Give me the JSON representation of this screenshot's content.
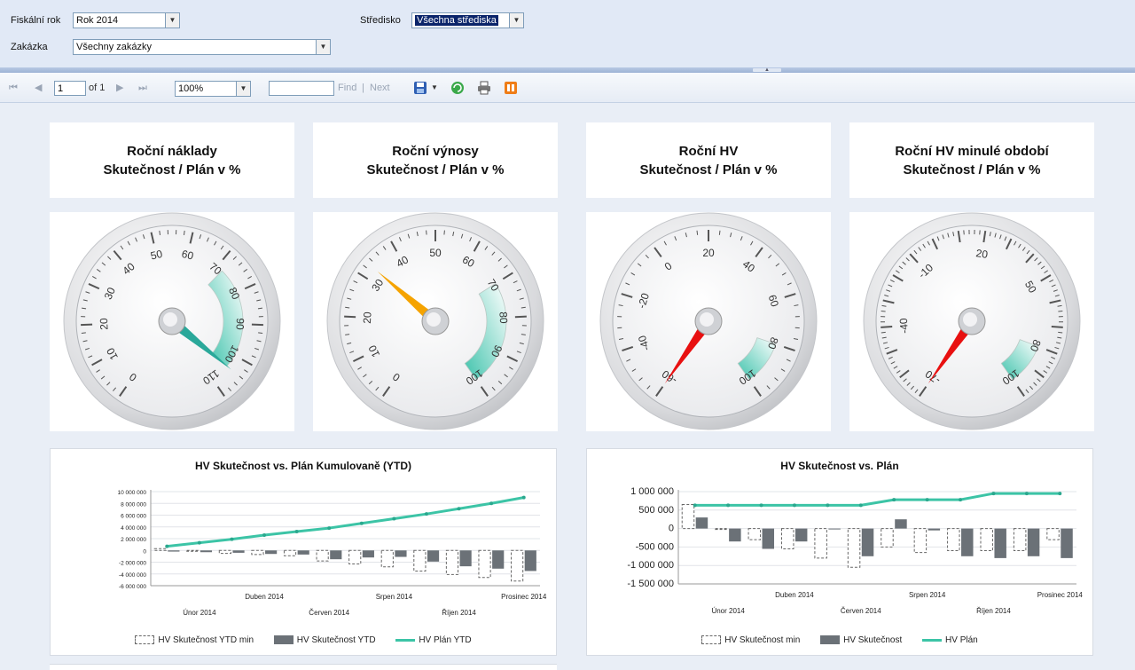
{
  "params": {
    "fiscal_year_label": "Fiskální rok",
    "fiscal_year_value": "Rok 2014",
    "center_label": "Středisko",
    "center_value": "Všechna střediska",
    "order_label": "Zakázka",
    "order_value": "Všechny zakázky"
  },
  "toolbar": {
    "page_value": "1",
    "page_of": "of 1",
    "zoom_value": "100%",
    "find_label": "Find",
    "separator": "|",
    "next_label": "Next"
  },
  "kpis": [
    {
      "title_line1": "Roční náklady",
      "title_line2": "Skutečnost / Plán v %",
      "min": 0,
      "max": 110,
      "major_step": 10,
      "value": 104,
      "labels": [
        0,
        10,
        20,
        30,
        40,
        50,
        60,
        70,
        80,
        90,
        100,
        110
      ],
      "band": [
        72,
        104
      ],
      "needle_color": "#2aa89a"
    },
    {
      "title_line1": "Roční výnosy",
      "title_line2": "Skutečnost / Plán v %",
      "min": 0,
      "max": 100,
      "major_step": 10,
      "value": 33,
      "labels": [
        0,
        10,
        20,
        30,
        40,
        50,
        60,
        70,
        80,
        90,
        100
      ],
      "band": [
        70,
        100
      ],
      "needle_color": "#f5a300"
    },
    {
      "title_line1": "Roční HV",
      "title_line2": "Skutečnost / Plán v %",
      "min": -60,
      "max": 100,
      "major_step": 20,
      "value": -60,
      "labels": [
        -60,
        -40,
        -20,
        0,
        20,
        40,
        60,
        80,
        100
      ],
      "band": [
        80,
        100
      ],
      "needle_color": "#e81010"
    },
    {
      "title_line1": "Roční HV minulé období",
      "title_line2": "Skutečnost / Plán v %",
      "min": -70,
      "max": 100,
      "major_step": 10,
      "value": -70,
      "labels": [
        -70,
        -40,
        -10,
        20,
        50,
        80,
        100
      ],
      "band": [
        80,
        100
      ],
      "needle_color": "#e81010"
    }
  ],
  "charts": [
    {
      "title": "HV Skutečnost vs. Plán Kumulovaně (YTD)",
      "legend": [
        "HV Skutečnost YTD min",
        "HV Skutečnost YTD",
        "HV Plán YTD"
      ],
      "chart_data": {
        "type": "bar",
        "categories": [
          "Leden 2014",
          "Únor 2014",
          "Březen 2014",
          "Duben 2014",
          "Květen 2014",
          "Červen 2014",
          "Červenec 2014",
          "Srpen 2014",
          "Září 2014",
          "Říjen 2014",
          "Listopad 2014",
          "Prosinec 2014"
        ],
        "x_tick_labels_row1": [
          "",
          "",
          "",
          "Duben 2014",
          "",
          "",
          "",
          "Srpen 2014",
          "",
          "",
          "",
          "Prosinec 2014"
        ],
        "x_tick_labels_row2": [
          "",
          "Únor 2014",
          "",
          "",
          "",
          "Červen 2014",
          "",
          "",
          "",
          "Říjen 2014",
          "",
          ""
        ],
        "y_ticks": [
          10000000,
          8000000,
          6000000,
          4000000,
          2000000,
          0,
          -2000000,
          -4000000,
          -6000000
        ],
        "y_tick_labels": [
          "10 000 000",
          "8 000 000",
          "6 000 000",
          "4 000 000",
          "2 000 000",
          "0",
          "-2 000 000",
          "-4 000 000",
          "-6 000 000"
        ],
        "ylim": [
          -6000000,
          10000000
        ],
        "series": [
          {
            "name": "HV Skutečnost YTD min",
            "style": "dashed-bar",
            "values": [
              300000,
              -100000,
              -500000,
              -700000,
              -900000,
              -1800000,
              -2300000,
              -2800000,
              -3500000,
              -4100000,
              -4600000,
              -5200000
            ]
          },
          {
            "name": "HV Skutečnost YTD",
            "style": "bar",
            "values": [
              -200000,
              -300000,
              -400000,
              -600000,
              -700000,
              -1500000,
              -1200000,
              -1100000,
              -1900000,
              -2700000,
              -3100000,
              -3500000
            ]
          },
          {
            "name": "HV Plán YTD",
            "style": "line",
            "values": [
              700000,
              1300000,
              1900000,
              2600000,
              3200000,
              3800000,
              4600000,
              5400000,
              6200000,
              7100000,
              8000000,
              9000000
            ]
          }
        ],
        "colors": {
          "bar": "#6b7177",
          "dashed": "#666666",
          "line": "#3cc4a6"
        }
      }
    },
    {
      "title": "HV Skutečnost vs. Plán",
      "legend": [
        "HV Skutečnost min",
        "HV Skutečnost",
        "HV Plán"
      ],
      "chart_data": {
        "type": "bar",
        "categories": [
          "Leden 2014",
          "Únor 2014",
          "Březen 2014",
          "Duben 2014",
          "Květen 2014",
          "Červen 2014",
          "Červenec 2014",
          "Srpen 2014",
          "Září 2014",
          "Říjen 2014",
          "Listopad 2014",
          "Prosinec 2014"
        ],
        "x_tick_labels_row1": [
          "",
          "",
          "",
          "Duben 2014",
          "",
          "",
          "",
          "Srpen 2014",
          "",
          "",
          "",
          "Prosinec 2014"
        ],
        "x_tick_labels_row2": [
          "",
          "Únor 2014",
          "",
          "",
          "",
          "Červen 2014",
          "",
          "",
          "",
          "Říjen 2014",
          "",
          ""
        ],
        "y_ticks": [
          1000000,
          500000,
          0,
          -500000,
          -1000000,
          -1500000
        ],
        "y_tick_labels": [
          "1 000 000",
          "500 000",
          "0",
          "-500 000",
          "-1 000 000",
          "-1 500 000"
        ],
        "ylim": [
          -1500000,
          1000000
        ],
        "series": [
          {
            "name": "HV Skutečnost min",
            "style": "dashed-bar",
            "values": [
              650000,
              0,
              -300000,
              -550000,
              -800000,
              -1050000,
              -500000,
              -650000,
              -600000,
              -600000,
              -600000,
              -300000
            ]
          },
          {
            "name": "HV Skutečnost",
            "style": "bar",
            "values": [
              300000,
              -350000,
              -550000,
              -350000,
              -20000,
              -750000,
              250000,
              -50000,
              -750000,
              -800000,
              -750000,
              -800000
            ]
          },
          {
            "name": "HV Plán",
            "style": "line",
            "values": [
              630000,
              630000,
              630000,
              630000,
              630000,
              630000,
              780000,
              780000,
              780000,
              950000,
              950000,
              950000
            ]
          }
        ],
        "colors": {
          "bar": "#6b7177",
          "dashed": "#666666",
          "line": "#3cc4a6"
        }
      }
    }
  ]
}
